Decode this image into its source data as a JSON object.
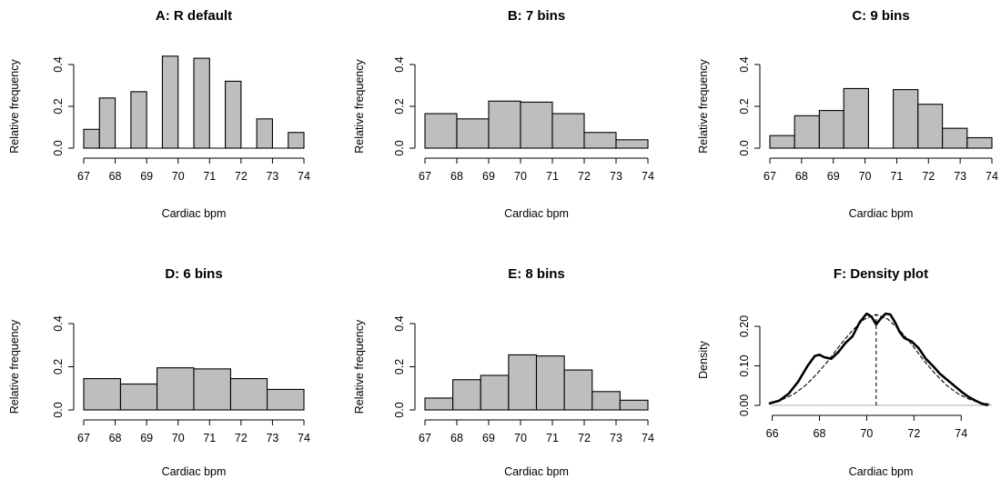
{
  "chart_data": [
    {
      "type": "bar",
      "title": "A: R default",
      "xlabel": "Cardiac bpm",
      "ylabel": "Relative frequency",
      "xlim": [
        67,
        74
      ],
      "ylim": [
        0,
        0.4
      ],
      "xticks": [
        "67",
        "68",
        "69",
        "70",
        "71",
        "72",
        "73",
        "74"
      ],
      "yticks": [
        "0.0",
        "0.2",
        "0.4"
      ],
      "bins": [
        {
          "x0": 67.0,
          "x1": 67.5,
          "value": 0.09
        },
        {
          "x0": 67.5,
          "x1": 68.0,
          "value": 0.24
        },
        {
          "x0": 68.5,
          "x1": 69.0,
          "value": 0.27
        },
        {
          "x0": 69.5,
          "x1": 70.0,
          "value": 0.44
        },
        {
          "x0": 70.5,
          "x1": 71.0,
          "value": 0.43
        },
        {
          "x0": 71.5,
          "x1": 72.0,
          "value": 0.32
        },
        {
          "x0": 72.5,
          "x1": 73.0,
          "value": 0.14
        },
        {
          "x0": 73.5,
          "x1": 74.0,
          "value": 0.075
        }
      ]
    },
    {
      "type": "bar",
      "title": "B: 7 bins",
      "xlabel": "Cardiac bpm",
      "ylabel": "Relative frequency",
      "xlim": [
        67,
        74
      ],
      "ylim": [
        0,
        0.4
      ],
      "xticks": [
        "67",
        "68",
        "69",
        "70",
        "71",
        "72",
        "73",
        "74"
      ],
      "yticks": [
        "0.0",
        "0.2",
        "0.4"
      ],
      "bins": [
        {
          "x0": 67,
          "x1": 68,
          "value": 0.165
        },
        {
          "x0": 68,
          "x1": 69,
          "value": 0.14
        },
        {
          "x0": 69,
          "x1": 70,
          "value": 0.225
        },
        {
          "x0": 70,
          "x1": 71,
          "value": 0.22
        },
        {
          "x0": 71,
          "x1": 72,
          "value": 0.165
        },
        {
          "x0": 72,
          "x1": 73,
          "value": 0.075
        },
        {
          "x0": 73,
          "x1": 74,
          "value": 0.04
        }
      ]
    },
    {
      "type": "bar",
      "title": "C: 9 bins",
      "xlabel": "Cardiac bpm",
      "ylabel": "Relative frequency",
      "xlim": [
        67,
        74
      ],
      "ylim": [
        0,
        0.4
      ],
      "xticks": [
        "67",
        "68",
        "69",
        "70",
        "71",
        "72",
        "73",
        "74"
      ],
      "yticks": [
        "0.0",
        "0.2",
        "0.4"
      ],
      "bins": [
        {
          "x0": 67.0,
          "x1": 67.78,
          "value": 0.06
        },
        {
          "x0": 67.78,
          "x1": 68.56,
          "value": 0.155
        },
        {
          "x0": 68.56,
          "x1": 69.33,
          "value": 0.18
        },
        {
          "x0": 69.33,
          "x1": 70.11,
          "value": 0.285
        },
        {
          "x0": 70.11,
          "x1": 70.89,
          "value": 0.0
        },
        {
          "x0": 70.89,
          "x1": 71.67,
          "value": 0.28
        },
        {
          "x0": 71.67,
          "x1": 72.44,
          "value": 0.21
        },
        {
          "x0": 72.44,
          "x1": 73.22,
          "value": 0.095
        },
        {
          "x0": 73.22,
          "x1": 74.0,
          "value": 0.05
        }
      ]
    },
    {
      "type": "bar",
      "title": "D: 6 bins",
      "xlabel": "Cardiac bpm",
      "ylabel": "Relative frequency",
      "xlim": [
        67,
        74
      ],
      "ylim": [
        0,
        0.4
      ],
      "xticks": [
        "67",
        "68",
        "69",
        "70",
        "71",
        "72",
        "73",
        "74"
      ],
      "yticks": [
        "0.0",
        "0.2",
        "0.4"
      ],
      "bins": [
        {
          "x0": 67.0,
          "x1": 68.17,
          "value": 0.145
        },
        {
          "x0": 68.17,
          "x1": 69.33,
          "value": 0.12
        },
        {
          "x0": 69.33,
          "x1": 70.5,
          "value": 0.195
        },
        {
          "x0": 70.5,
          "x1": 71.67,
          "value": 0.19
        },
        {
          "x0": 71.67,
          "x1": 72.83,
          "value": 0.145
        },
        {
          "x0": 72.83,
          "x1": 74.0,
          "value": 0.095
        }
      ]
    },
    {
      "type": "bar",
      "title": "E: 8 bins",
      "xlabel": "Cardiac bpm",
      "ylabel": "Relative frequency",
      "xlim": [
        67,
        74
      ],
      "ylim": [
        0,
        0.4
      ],
      "xticks": [
        "67",
        "68",
        "69",
        "70",
        "71",
        "72",
        "73",
        "74"
      ],
      "yticks": [
        "0.0",
        "0.2",
        "0.4"
      ],
      "bins": [
        {
          "x0": 67.0,
          "x1": 67.875,
          "value": 0.055
        },
        {
          "x0": 67.875,
          "x1": 68.75,
          "value": 0.14
        },
        {
          "x0": 68.75,
          "x1": 69.625,
          "value": 0.16
        },
        {
          "x0": 69.625,
          "x1": 70.5,
          "value": 0.255
        },
        {
          "x0": 70.5,
          "x1": 71.375,
          "value": 0.25
        },
        {
          "x0": 71.375,
          "x1": 72.25,
          "value": 0.185
        },
        {
          "x0": 72.25,
          "x1": 73.125,
          "value": 0.085
        },
        {
          "x0": 73.125,
          "x1": 74.0,
          "value": 0.045
        }
      ]
    },
    {
      "type": "line",
      "title": "F: Density plot",
      "xlabel": "Cardiac bpm",
      "ylabel": "Density",
      "xlim": [
        65.9,
        75.3
      ],
      "ylim": [
        0,
        0.23
      ],
      "xticks": [
        "66",
        "68",
        "70",
        "72",
        "74"
      ],
      "yticks": [
        "0.00",
        "0.10",
        "0.20"
      ],
      "mean_line_x": 70.4,
      "series": [
        {
          "style": "solid",
          "x": [
            65.9,
            66.3,
            66.7,
            67.1,
            67.5,
            67.8,
            68.0,
            68.2,
            68.5,
            68.8,
            69.1,
            69.4,
            69.7,
            70.0,
            70.2,
            70.4,
            70.6,
            70.8,
            71.0,
            71.2,
            71.4,
            71.6,
            71.9,
            72.2,
            72.5,
            72.8,
            73.1,
            73.4,
            73.7,
            74.0,
            74.3,
            74.6,
            74.9,
            75.1
          ],
          "y": [
            0.005,
            0.012,
            0.03,
            0.06,
            0.1,
            0.125,
            0.128,
            0.122,
            0.118,
            0.135,
            0.158,
            0.175,
            0.21,
            0.232,
            0.225,
            0.205,
            0.22,
            0.232,
            0.23,
            0.21,
            0.185,
            0.17,
            0.162,
            0.145,
            0.118,
            0.1,
            0.08,
            0.065,
            0.05,
            0.035,
            0.022,
            0.012,
            0.004,
            0.001
          ]
        },
        {
          "style": "dashed",
          "x": [
            65.9,
            66.4,
            66.9,
            67.4,
            67.9,
            68.4,
            68.9,
            69.4,
            69.9,
            70.4,
            70.9,
            71.4,
            71.9,
            72.4,
            72.9,
            73.4,
            73.9,
            74.4,
            74.9,
            75.2
          ],
          "y": [
            0.006,
            0.014,
            0.028,
            0.05,
            0.08,
            0.115,
            0.155,
            0.19,
            0.218,
            0.23,
            0.218,
            0.19,
            0.155,
            0.115,
            0.08,
            0.05,
            0.028,
            0.014,
            0.006,
            0.003
          ]
        }
      ]
    }
  ]
}
